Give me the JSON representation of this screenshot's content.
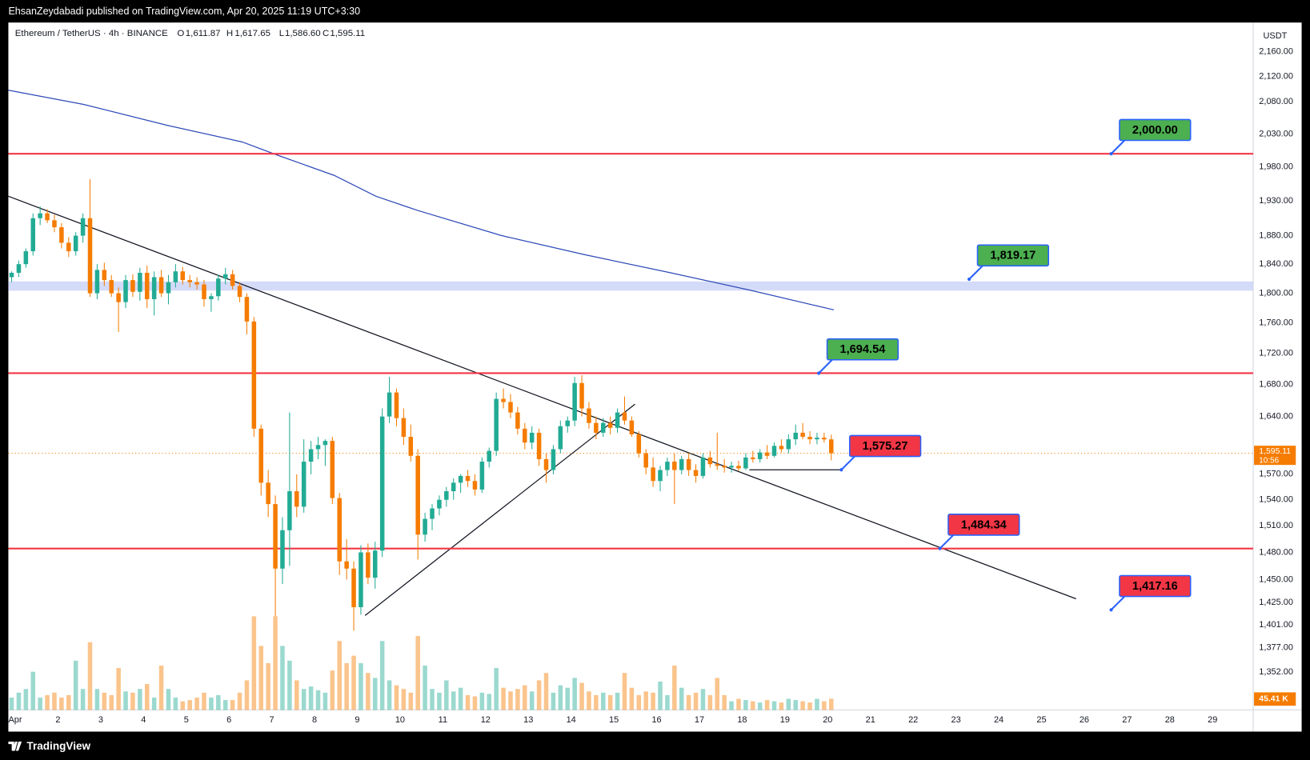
{
  "header": {
    "publisher": "EhsanZeydabadi published on TradingView.com, Apr 20, 2025 11:19 UTC+3:30",
    "brand": "TradingView"
  },
  "chart_data": {
    "type": "candlestick",
    "symbol": "Ethereum / TetherUS · 4h · BINANCE",
    "currency": "USDT",
    "legend": [
      {
        "key": "O",
        "label": "1,611.87"
      },
      {
        "key": "H",
        "label": "1,617.65"
      },
      {
        "key": "L",
        "label": "1,586.60"
      },
      {
        "key": "C",
        "label": "1,595.11"
      }
    ],
    "log_scale": true,
    "grid": false,
    "up_color": "#22ab94",
    "down_color": "#f57c00",
    "ylim": [
      1314,
      2207
    ],
    "yticks": [
      {
        "value": 2160,
        "label": "2,160.00"
      },
      {
        "value": 2120,
        "label": "2,120.00"
      },
      {
        "value": 2080,
        "label": "2,080.00"
      },
      {
        "value": 2030,
        "label": "2,030.00"
      },
      {
        "value": 1980,
        "label": "1,980.00"
      },
      {
        "value": 1930,
        "label": "1,930.00"
      },
      {
        "value": 1880,
        "label": "1,880.00"
      },
      {
        "value": 1840,
        "label": "1,840.00"
      },
      {
        "value": 1800,
        "label": "1,800.00"
      },
      {
        "value": 1760,
        "label": "1,760.00"
      },
      {
        "value": 1720,
        "label": "1,720.00"
      },
      {
        "value": 1680,
        "label": "1,680.00"
      },
      {
        "value": 1640,
        "label": "1,640.00"
      },
      {
        "value": 1570,
        "label": "1,570.00"
      },
      {
        "value": 1540,
        "label": "1,540.00"
      },
      {
        "value": 1510,
        "label": "1,510.00"
      },
      {
        "value": 1480,
        "label": "1,480.00"
      },
      {
        "value": 1450,
        "label": "1,450.00"
      },
      {
        "value": 1425,
        "label": "1,425.00"
      },
      {
        "value": 1401,
        "label": "1,401.00"
      },
      {
        "value": 1377,
        "label": "1,377.00"
      },
      {
        "value": 1352,
        "label": "1,352.00"
      }
    ],
    "xlim": [
      0.84,
      29.95
    ],
    "xticks": [
      {
        "value": 1,
        "label": "Apr"
      },
      2,
      3,
      4,
      5,
      6,
      7,
      8,
      9,
      10,
      11,
      12,
      13,
      14,
      15,
      16,
      17,
      18,
      19,
      20,
      21,
      22,
      23,
      24,
      25,
      26,
      27,
      28,
      29
    ],
    "candles": [
      [
        1822,
        1830,
        1815,
        1828
      ],
      [
        1828,
        1845,
        1822,
        1840
      ],
      [
        1840,
        1862,
        1835,
        1858
      ],
      [
        1858,
        1912,
        1852,
        1905
      ],
      [
        1905,
        1922,
        1895,
        1912
      ],
      [
        1912,
        1918,
        1898,
        1902
      ],
      [
        1902,
        1910,
        1885,
        1892
      ],
      [
        1892,
        1898,
        1862,
        1870
      ],
      [
        1870,
        1878,
        1850,
        1858
      ],
      [
        1858,
        1885,
        1852,
        1880
      ],
      [
        1880,
        1912,
        1870,
        1905
      ],
      [
        1905,
        1962,
        1795,
        1800
      ],
      [
        1800,
        1840,
        1792,
        1832
      ],
      [
        1832,
        1842,
        1810,
        1818
      ],
      [
        1818,
        1825,
        1795,
        1800
      ],
      [
        1800,
        1808,
        1748,
        1788
      ],
      [
        1788,
        1825,
        1780,
        1818
      ],
      [
        1818,
        1826,
        1795,
        1802
      ],
      [
        1802,
        1835,
        1790,
        1828
      ],
      [
        1828,
        1838,
        1780,
        1792
      ],
      [
        1792,
        1830,
        1770,
        1822
      ],
      [
        1822,
        1832,
        1795,
        1800
      ],
      [
        1800,
        1825,
        1785,
        1815
      ],
      [
        1815,
        1840,
        1808,
        1830
      ],
      [
        1830,
        1836,
        1812,
        1818
      ],
      [
        1818,
        1825,
        1808,
        1815
      ],
      [
        1815,
        1822,
        1805,
        1812
      ],
      [
        1812,
        1818,
        1782,
        1792
      ],
      [
        1792,
        1800,
        1775,
        1796
      ],
      [
        1796,
        1825,
        1790,
        1820
      ],
      [
        1820,
        1835,
        1812,
        1826
      ],
      [
        1826,
        1832,
        1805,
        1810
      ],
      [
        1810,
        1815,
        1788,
        1795
      ],
      [
        1795,
        1800,
        1745,
        1762
      ],
      [
        1762,
        1768,
        1615,
        1625
      ],
      [
        1625,
        1630,
        1545,
        1560
      ],
      [
        1560,
        1575,
        1520,
        1535
      ],
      [
        1535,
        1545,
        1410,
        1462
      ],
      [
        1462,
        1520,
        1445,
        1505
      ],
      [
        1505,
        1645,
        1465,
        1550
      ],
      [
        1550,
        1570,
        1520,
        1532
      ],
      [
        1532,
        1612,
        1525,
        1585
      ],
      [
        1585,
        1610,
        1570,
        1600
      ],
      [
        1600,
        1615,
        1588,
        1605
      ],
      [
        1605,
        1612,
        1580,
        1610
      ],
      [
        1610,
        1615,
        1535,
        1542
      ],
      [
        1542,
        1548,
        1455,
        1470
      ],
      [
        1470,
        1495,
        1450,
        1462
      ],
      [
        1462,
        1470,
        1395,
        1420
      ],
      [
        1420,
        1488,
        1412,
        1480
      ],
      [
        1480,
        1490,
        1445,
        1452
      ],
      [
        1452,
        1492,
        1440,
        1482
      ],
      [
        1482,
        1650,
        1475,
        1640
      ],
      [
        1640,
        1690,
        1632,
        1670
      ],
      [
        1670,
        1675,
        1628,
        1638
      ],
      [
        1638,
        1650,
        1605,
        1615
      ],
      [
        1615,
        1630,
        1585,
        1592
      ],
      [
        1592,
        1600,
        1472,
        1500
      ],
      [
        1500,
        1525,
        1492,
        1518
      ],
      [
        1518,
        1535,
        1505,
        1530
      ],
      [
        1530,
        1545,
        1522,
        1540
      ],
      [
        1540,
        1555,
        1532,
        1550
      ],
      [
        1550,
        1565,
        1540,
        1560
      ],
      [
        1560,
        1570,
        1548,
        1568
      ],
      [
        1568,
        1575,
        1555,
        1562
      ],
      [
        1562,
        1570,
        1545,
        1552
      ],
      [
        1552,
        1590,
        1548,
        1585
      ],
      [
        1585,
        1602,
        1578,
        1598
      ],
      [
        1598,
        1670,
        1592,
        1662
      ],
      [
        1662,
        1675,
        1650,
        1658
      ],
      [
        1658,
        1668,
        1638,
        1645
      ],
      [
        1645,
        1652,
        1618,
        1625
      ],
      [
        1625,
        1632,
        1600,
        1608
      ],
      [
        1608,
        1628,
        1600,
        1620
      ],
      [
        1620,
        1625,
        1580,
        1588
      ],
      [
        1588,
        1595,
        1560,
        1575
      ],
      [
        1575,
        1605,
        1570,
        1600
      ],
      [
        1600,
        1635,
        1595,
        1628
      ],
      [
        1628,
        1640,
        1620,
        1635
      ],
      [
        1635,
        1690,
        1628,
        1682
      ],
      [
        1682,
        1692,
        1640,
        1650
      ],
      [
        1650,
        1658,
        1625,
        1632
      ],
      [
        1632,
        1640,
        1612,
        1620
      ],
      [
        1620,
        1638,
        1615,
        1632
      ],
      [
        1632,
        1640,
        1618,
        1626
      ],
      [
        1626,
        1650,
        1620,
        1645
      ],
      [
        1645,
        1665,
        1630,
        1635
      ],
      [
        1635,
        1640,
        1615,
        1618
      ],
      [
        1618,
        1622,
        1590,
        1595
      ],
      [
        1595,
        1600,
        1570,
        1578
      ],
      [
        1578,
        1590,
        1555,
        1562
      ],
      [
        1562,
        1580,
        1550,
        1575
      ],
      [
        1575,
        1590,
        1568,
        1585
      ],
      [
        1585,
        1595,
        1535,
        1575
      ],
      [
        1575,
        1592,
        1570,
        1588
      ],
      [
        1588,
        1595,
        1568,
        1575
      ],
      [
        1575,
        1582,
        1560,
        1568
      ],
      [
        1568,
        1595,
        1565,
        1590
      ],
      [
        1590,
        1598,
        1578,
        1582
      ],
      [
        1582,
        1620,
        1575,
        1580
      ],
      [
        1580,
        1588,
        1572,
        1578
      ],
      [
        1578,
        1585,
        1572,
        1580
      ],
      [
        1580,
        1586,
        1574,
        1577
      ],
      [
        1577,
        1595,
        1575,
        1590
      ],
      [
        1590,
        1598,
        1584,
        1588
      ],
      [
        1588,
        1600,
        1584,
        1596
      ],
      [
        1596,
        1605,
        1588,
        1592
      ],
      [
        1592,
        1608,
        1590,
        1604
      ],
      [
        1604,
        1612,
        1596,
        1600
      ],
      [
        1600,
        1618,
        1595,
        1612
      ],
      [
        1612,
        1630,
        1605,
        1620
      ],
      [
        1620,
        1632,
        1612,
        1615
      ],
      [
        1615,
        1622,
        1606,
        1612
      ],
      [
        1612,
        1620,
        1606,
        1614
      ],
      [
        1614,
        1620,
        1608,
        1611.87
      ],
      [
        1611.87,
        1617.65,
        1586.6,
        1595.11
      ]
    ],
    "volume": [
      50,
      70,
      85,
      155,
      50,
      60,
      70,
      50,
      60,
      200,
      85,
      275,
      85,
      70,
      60,
      170,
      75,
      70,
      85,
      105,
      50,
      180,
      85,
      50,
      35,
      40,
      50,
      70,
      50,
      60,
      40,
      40,
      70,
      120,
      380,
      260,
      190,
      380,
      260,
      200,
      120,
      85,
      95,
      80,
      70,
      160,
      280,
      190,
      220,
      190,
      150,
      130,
      280,
      120,
      100,
      85,
      70,
      300,
      180,
      85,
      70,
      120,
      75,
      90,
      60,
      55,
      70,
      65,
      170,
      90,
      75,
      85,
      100,
      75,
      120,
      150,
      70,
      100,
      90,
      130,
      110,
      75,
      60,
      70,
      60,
      70,
      150,
      90,
      60,
      75,
      70,
      115,
      60,
      180,
      90,
      60,
      70,
      85,
      60,
      130,
      60,
      35,
      45,
      40,
      35,
      30,
      40,
      35,
      30,
      45,
      40,
      35,
      30,
      45,
      35,
      45.41
    ],
    "volume_label": "45.41 K",
    "last_price": {
      "value": 1595.11,
      "label": "1,595.11"
    },
    "countdown": "10:56",
    "annotations": [
      {
        "value": 2000,
        "label": "2,000.00",
        "color": "#4caf50",
        "style": "hline"
      },
      {
        "value": 1819.17,
        "label": "1,819.17",
        "color": "#4caf50",
        "style": "point"
      },
      {
        "value": 1694.54,
        "label": "1,694.54",
        "color": "#4caf50",
        "style": "hline"
      },
      {
        "value": 1575.27,
        "label": "1,575.27",
        "color": "#f23645",
        "style": "segment"
      },
      {
        "value": 1484.34,
        "label": "1,484.34",
        "color": "#f23645",
        "style": "hline"
      },
      {
        "value": 1417.16,
        "label": "1,417.16",
        "color": "#f23645",
        "style": "point"
      }
    ]
  }
}
